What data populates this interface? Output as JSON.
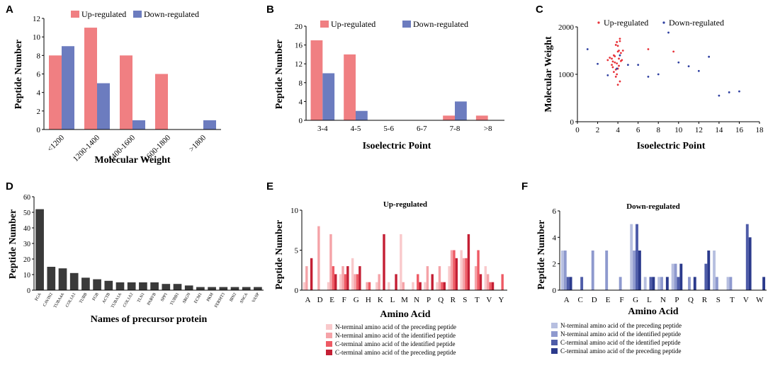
{
  "colors": {
    "up": "#F07F82",
    "down": "#6C7CBF",
    "scatter_up": "#E8333A",
    "scatter_down": "#2E3FA0",
    "black_bar": "#3A3A3A",
    "axis": "#000000",
    "up_shades": [
      "#F9C9CB",
      "#F5A3A8",
      "#EE5A64",
      "#C41F34"
    ],
    "down_shades": [
      "#B7BFE0",
      "#8E99CE",
      "#4E5CA8",
      "#2B3A8C"
    ]
  },
  "chart_data": [
    {
      "panel": "A",
      "type": "bar",
      "xlabel": "Molecular Weight",
      "ylabel": "Peptide Number",
      "ylim": [
        0,
        12
      ],
      "yticks": [
        0,
        2,
        4,
        6,
        8,
        10,
        12
      ],
      "categories": [
        "<1200",
        "1200-1400",
        "1400-1600",
        "1600-1800",
        ">1800"
      ],
      "series": [
        {
          "name": "Up-regulated",
          "values": [
            8,
            11,
            8,
            6,
            0
          ]
        },
        {
          "name": "Down-regulated",
          "values": [
            9,
            5,
            1,
            0,
            1
          ]
        }
      ],
      "legend": "top"
    },
    {
      "panel": "B",
      "type": "bar",
      "xlabel": "Isoelectric Point",
      "ylabel": "Peptide Number",
      "ylim": [
        0,
        20
      ],
      "yticks": [
        0,
        4,
        8,
        12,
        16,
        20
      ],
      "categories": [
        "3-4",
        "4-5",
        "5-6",
        "6-7",
        "7-8",
        ">8"
      ],
      "series": [
        {
          "name": "Up-regulated",
          "values": [
            17,
            14,
            0,
            0,
            1,
            1
          ]
        },
        {
          "name": "Down-regulated",
          "values": [
            10,
            2,
            0,
            0,
            4,
            0
          ]
        }
      ],
      "legend": "top"
    },
    {
      "panel": "C",
      "type": "scatter",
      "xlabel": "Isoelectric Point",
      "ylabel": "Molecular Weight",
      "xlim": [
        0,
        18
      ],
      "ylim": [
        0,
        2000
      ],
      "xticks": [
        0,
        2,
        4,
        6,
        8,
        10,
        12,
        14,
        16,
        18
      ],
      "yticks": [
        0,
        1000,
        2000
      ],
      "series": [
        {
          "name": "Up-regulated",
          "x": [
            3.0,
            3.2,
            3.4,
            3.5,
            3.6,
            3.7,
            3.8,
            3.9,
            4.0,
            4.1,
            4.2,
            4.3,
            4.4,
            3.6,
            3.8,
            4.0,
            4.2,
            3.4,
            3.9,
            4.1,
            4.3,
            3.7,
            4.0,
            3.5,
            3.8,
            4.2,
            4.0,
            4.5,
            7.0,
            9.5,
            3.9,
            4.1
          ],
          "y": [
            1300,
            1350,
            1200,
            1150,
            1400,
            1250,
            1100,
            1000,
            1600,
            1500,
            1700,
            1450,
            1300,
            1050,
            950,
            780,
            850,
            1330,
            1230,
            1180,
            1280,
            1380,
            1480,
            1270,
            1620,
            1750,
            1120,
            1500,
            1530,
            1480,
            1680,
            1330
          ]
        },
        {
          "name": "Down-regulated",
          "x": [
            1.0,
            2.0,
            3.0,
            5.0,
            6.0,
            7.0,
            8.0,
            9.0,
            10.0,
            11.0,
            12.0,
            13.0,
            14.0,
            15.0,
            16.0,
            3.9,
            4.2
          ],
          "y": [
            1530,
            1220,
            980,
            1200,
            1200,
            950,
            1000,
            1880,
            1250,
            1170,
            1070,
            1370,
            550,
            620,
            640,
            1120,
            1400
          ]
        }
      ],
      "legend": "top"
    },
    {
      "panel": "D",
      "type": "bar",
      "xlabel": "Names of precursor protein",
      "ylabel": "Peptide Number",
      "ylim": [
        0,
        60
      ],
      "yticks": [
        0,
        10,
        20,
        30,
        40,
        50,
        60
      ],
      "categories": [
        "FGA",
        "CAVIN2",
        "TUBA4A",
        "COL1A1",
        "TUBB",
        "FGB",
        "ACTB",
        "TUBA1A",
        "COL1A2",
        "TLN1",
        "PARVB",
        "SPP1",
        "TUBB1",
        "SRGN",
        "ECM1",
        "PKM",
        "FERMT3",
        "IBN2",
        "SNCA",
        "VASP"
      ],
      "values": [
        52,
        15,
        14,
        11,
        8,
        7,
        6,
        5,
        5,
        5,
        5,
        4,
        4,
        3,
        2,
        2,
        2,
        2,
        2,
        2
      ]
    },
    {
      "panel": "E",
      "type": "bar",
      "title": "Up-regulated",
      "xlabel": "Amino Acid",
      "ylabel": "Peptide Number",
      "ylim": [
        0,
        10
      ],
      "yticks": [
        0,
        5,
        10
      ],
      "categories": [
        "A",
        "D",
        "E",
        "F",
        "G",
        "H",
        "K",
        "L",
        "M",
        "N",
        "P",
        "Q",
        "R",
        "S",
        "T",
        "V",
        "Y"
      ],
      "series": [
        {
          "name": "N-terminal amino acid of the preceding peptide",
          "values": [
            1,
            0,
            1,
            2,
            4,
            0,
            1,
            1,
            7,
            1,
            1,
            1,
            3,
            5,
            0,
            3,
            0
          ]
        },
        {
          "name": "N-terminal amino acid of the identified peptide",
          "values": [
            3,
            8,
            7,
            3,
            2,
            1,
            2,
            0,
            1,
            0,
            3,
            3,
            5,
            4,
            3,
            2,
            0
          ]
        },
        {
          "name": "C-terminal amino acid of the identified peptide",
          "values": [
            0,
            0,
            3,
            2,
            2,
            1,
            0,
            0,
            0,
            2,
            0,
            1,
            5,
            4,
            5,
            1,
            2
          ]
        },
        {
          "name": "C-terminal amino acid of the preceding peptide",
          "values": [
            4,
            0,
            2,
            3,
            3,
            0,
            7,
            2,
            0,
            1,
            2,
            1,
            4,
            7,
            2,
            1,
            0
          ]
        }
      ],
      "legend": "below"
    },
    {
      "panel": "F",
      "type": "bar",
      "title": "Down-regulated",
      "xlabel": "Amino Acid",
      "ylabel": "Peptide Number",
      "ylim": [
        0,
        6
      ],
      "yticks": [
        0,
        2,
        4,
        6
      ],
      "categories": [
        "A",
        "C",
        "D",
        "E",
        "F",
        "G",
        "L",
        "N",
        "P",
        "Q",
        "R",
        "S",
        "T",
        "V",
        "W"
      ],
      "series": [
        {
          "name": "N-terminal amino acid of the preceding peptide",
          "values": [
            3,
            0,
            0,
            0,
            0,
            5,
            1,
            1,
            2,
            0,
            0,
            3,
            1,
            0,
            0
          ]
        },
        {
          "name": "N-terminal amino acid of the identified peptide",
          "values": [
            3,
            0,
            3,
            3,
            1,
            3,
            0,
            1,
            2,
            1,
            0,
            1,
            1,
            0,
            0
          ]
        },
        {
          "name": "C-terminal amino acid of the identified peptide",
          "values": [
            1,
            1,
            0,
            0,
            0,
            5,
            1,
            0,
            1,
            0,
            2,
            0,
            0,
            5,
            0
          ]
        },
        {
          "name": "C-terminal amino acid of the preceding peptide",
          "values": [
            1,
            0,
            0,
            0,
            0,
            3,
            1,
            1,
            2,
            1,
            3,
            0,
            0,
            4,
            1
          ]
        }
      ],
      "legend": "below"
    }
  ]
}
